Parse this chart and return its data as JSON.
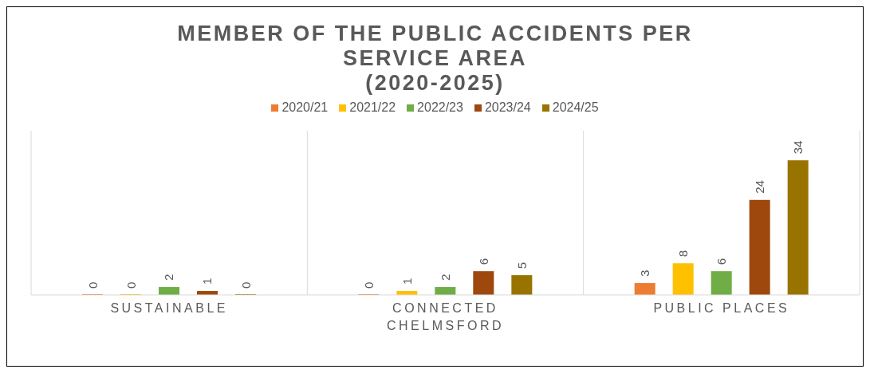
{
  "chart_data": {
    "type": "bar",
    "title": "MEMBER OF THE PUBLIC ACCIDENTS PER SERVICE AREA\n(2020-2025)",
    "categories": [
      "SUSTAINABLE",
      "CONNECTED CHELMSFORD",
      "PUBLIC PLACES"
    ],
    "series": [
      {
        "name": "2020/21",
        "color": "#ed7d31",
        "values": [
          0,
          0,
          3
        ]
      },
      {
        "name": "2021/22",
        "color": "#ffc000",
        "values": [
          0,
          1,
          8
        ]
      },
      {
        "name": "2022/23",
        "color": "#70ad47",
        "values": [
          2,
          2,
          6
        ]
      },
      {
        "name": "2023/24",
        "color": "#9e480e",
        "values": [
          1,
          6,
          24
        ]
      },
      {
        "name": "2024/25",
        "color": "#997300",
        "values": [
          0,
          5,
          34
        ]
      }
    ],
    "data_labels": true,
    "grid": "x",
    "legend": "top"
  }
}
